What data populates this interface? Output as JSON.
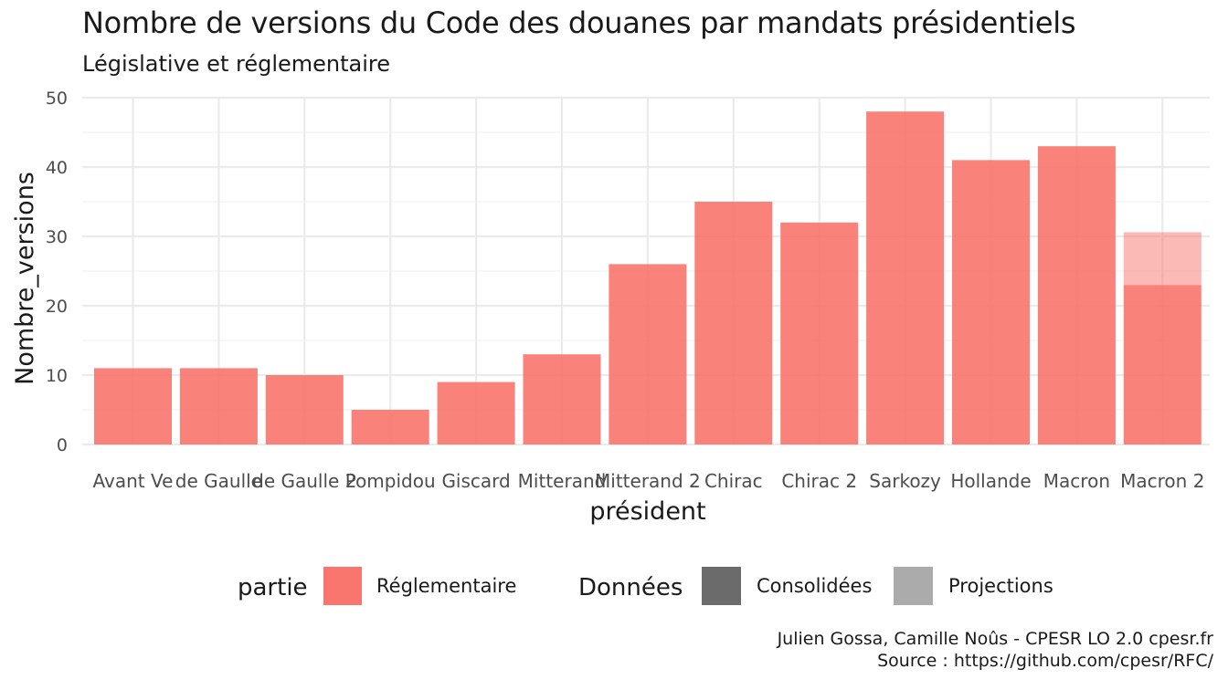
{
  "chart_data": {
    "type": "bar",
    "title": "Nombre de versions du Code des douanes par mandats présidentiels",
    "subtitle": "Législative et réglementaire",
    "xlabel": "président",
    "ylabel": "Nombre_versions",
    "ylim": [
      0,
      50
    ],
    "yticks": [
      0,
      10,
      20,
      30,
      40,
      50
    ],
    "grid": true,
    "legend_position": "bottom",
    "categories": [
      "Avant Ve",
      "de Gaulle",
      "de Gaulle 2",
      "Pompidou",
      "Giscard",
      "Mitterand",
      "Mitterand 2",
      "Chirac",
      "Chirac 2",
      "Sarkozy",
      "Hollande",
      "Macron",
      "Macron 2"
    ],
    "series": [
      {
        "name": "Réglementaire",
        "data_type": "Consolidées",
        "values": [
          11,
          11,
          10,
          5,
          9,
          13,
          26,
          35,
          32,
          48,
          41,
          43,
          23
        ]
      },
      {
        "name": "Réglementaire",
        "data_type": "Projections",
        "values": [
          0,
          0,
          0,
          0,
          0,
          0,
          0,
          0,
          0,
          0,
          0,
          0,
          7.6
        ]
      }
    ],
    "legend": {
      "fill_title": "partie",
      "fill_items": [
        {
          "label": "Réglementaire",
          "color": "#f8766d"
        }
      ],
      "alpha_title": "Données",
      "alpha_items": [
        {
          "label": "Consolidées",
          "color": "#6b6b6b"
        },
        {
          "label": "Projections",
          "color": "#ababab"
        }
      ]
    },
    "bar_color": "#f8766d"
  },
  "caption": {
    "line1": "Julien Gossa, Camille Noûs - CPESR LO 2.0 cpesr.fr",
    "line2": "Source : https://github.com/cpesr/RFC/"
  }
}
